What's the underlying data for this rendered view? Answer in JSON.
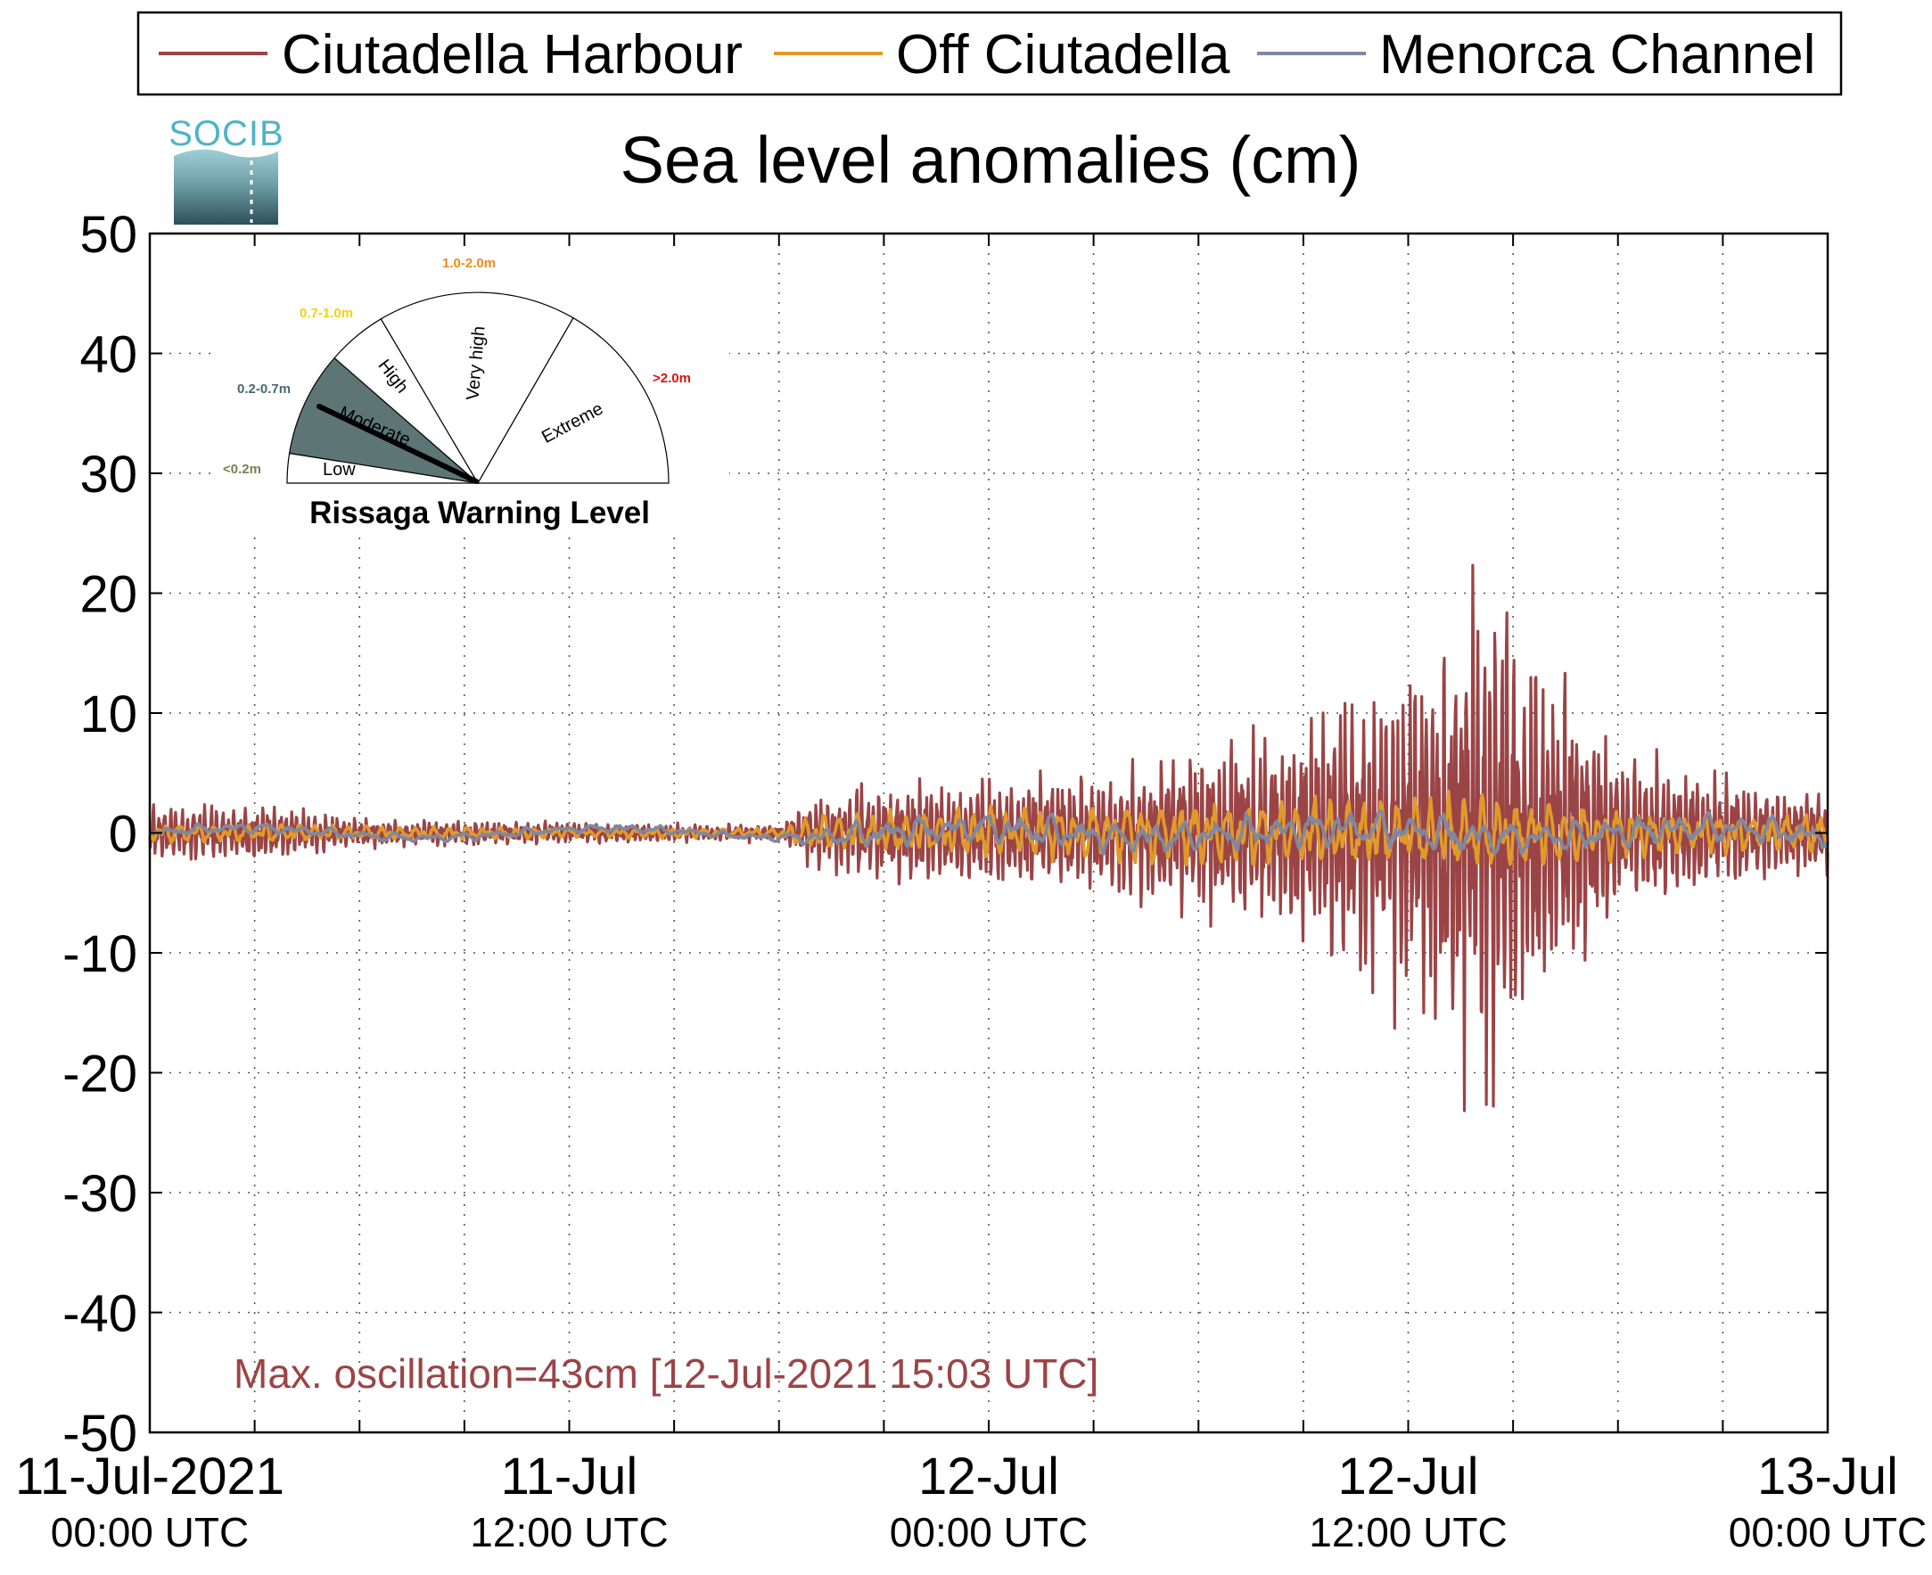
{
  "chart_data": {
    "type": "line",
    "title": "Sea level anomalies (cm)",
    "ylim": [
      -50,
      50
    ],
    "yticks": [
      "50",
      "40",
      "30",
      "20",
      "10",
      "0",
      "-10",
      "-20",
      "-30",
      "-40",
      "-50"
    ],
    "xlim_hours": [
      0,
      48
    ],
    "xticks": [
      {
        "line1": "11-Jul-2021",
        "line2": "00:00 UTC"
      },
      {
        "line1": "11-Jul",
        "line2": "12:00 UTC"
      },
      {
        "line1": "12-Jul",
        "line2": "00:00 UTC"
      },
      {
        "line1": "12-Jul",
        "line2": "12:00 UTC"
      },
      {
        "line1": "13-Jul",
        "line2": "00:00 UTC"
      }
    ],
    "grid": true,
    "legend": "top",
    "annotation": "Max. oscillation=43cm [12-Jul-2021 15:03 UTC]",
    "series": [
      {
        "name": "Ciutadella Harbour",
        "color": "#9b4446",
        "envelope": [
          [
            0,
            2
          ],
          [
            3,
            2.2
          ],
          [
            6,
            1
          ],
          [
            12,
            0.8
          ],
          [
            18,
            0.6
          ],
          [
            19,
            2.5
          ],
          [
            20,
            3.5
          ],
          [
            24,
            4
          ],
          [
            27,
            4.5
          ],
          [
            30,
            6
          ],
          [
            33,
            8
          ],
          [
            35,
            12
          ],
          [
            37,
            15
          ],
          [
            38,
            20.5
          ],
          [
            39,
            17
          ],
          [
            40,
            13
          ],
          [
            42,
            6
          ],
          [
            45,
            4
          ],
          [
            48,
            3
          ]
        ]
      },
      {
        "name": "Off Ciutadella",
        "color": "#e09a2c",
        "envelope": [
          [
            0,
            0.8
          ],
          [
            6,
            0.6
          ],
          [
            12,
            0.4
          ],
          [
            18,
            0.4
          ],
          [
            19,
            1.5
          ],
          [
            24,
            2
          ],
          [
            30,
            2.5
          ],
          [
            34,
            2.8
          ],
          [
            38,
            3
          ],
          [
            42,
            2
          ],
          [
            48,
            1.5
          ]
        ]
      },
      {
        "name": "Menorca Channel",
        "color": "#8088a0",
        "envelope": [
          [
            0,
            0.4
          ],
          [
            12,
            0.3
          ],
          [
            18,
            0.3
          ],
          [
            20,
            1
          ],
          [
            24,
            1.2
          ],
          [
            30,
            1.2
          ],
          [
            36,
            1.5
          ],
          [
            40,
            1.2
          ],
          [
            48,
            1
          ]
        ]
      }
    ]
  },
  "warning_gauge": {
    "title": "Rissaga Warning Level",
    "current_level": "Moderate",
    "sectors": [
      {
        "label": "Low",
        "range": "<0.2m",
        "range_color": "#7a7f52"
      },
      {
        "label": "Moderate",
        "range": "0.2-0.7m",
        "range_color": "#4a6872",
        "fill": "#5d7575"
      },
      {
        "label": "High",
        "range": "0.7-1.0m",
        "range_color": "#f2d20a"
      },
      {
        "label": "Very high",
        "range": "1.0-2.0m",
        "range_color": "#f08a1c"
      },
      {
        "label": "Extreme",
        "range": ">2.0m",
        "range_color": "#e01010"
      }
    ]
  },
  "logo": {
    "text": "SOCIB",
    "color": "#4fb3c8"
  }
}
